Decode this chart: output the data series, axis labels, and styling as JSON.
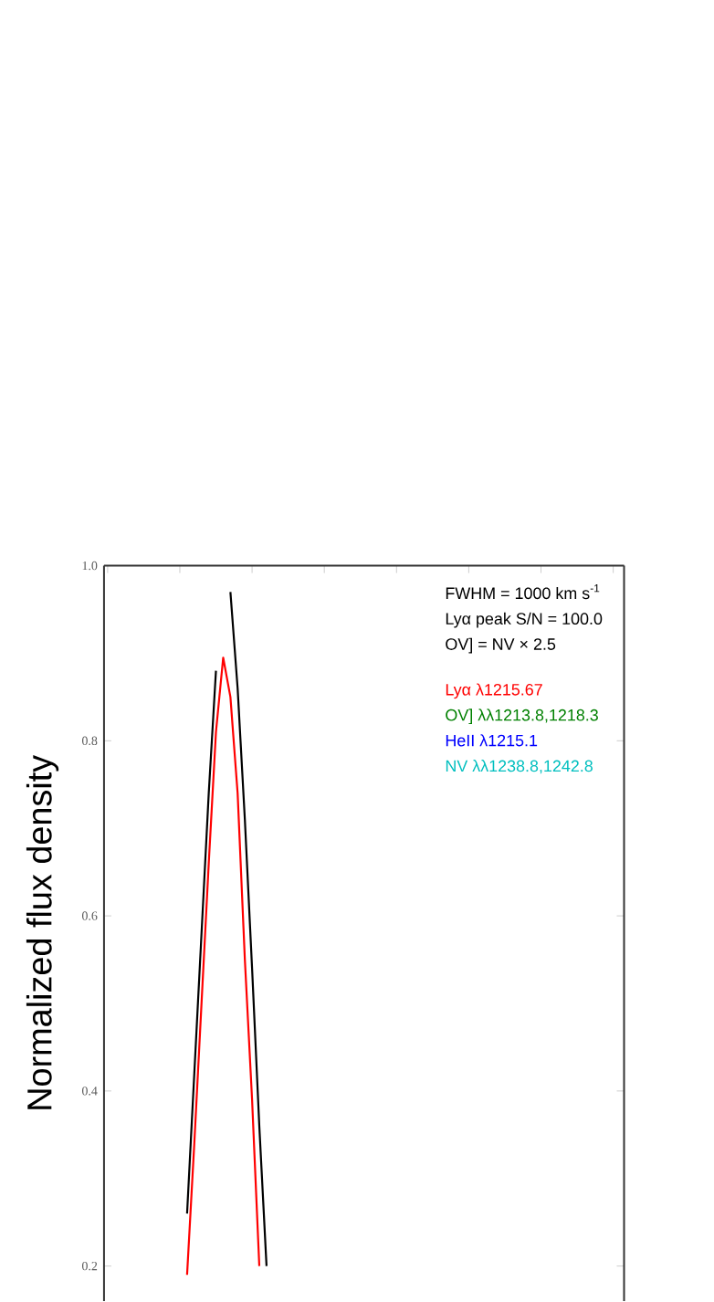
{
  "chart_data": {
    "type": "line",
    "ylabel": "Normalized flux density",
    "annotations": [
      "FWHM = 1000 km s$^{-1}$",
      "Lyα peak S/N = 100.0",
      "OV] = NV × 2.5"
    ],
    "categories": [
      null,
      null,
      null,
      null,
      null,
      null,
      null,
      null,
      null,
      null,
      null,
      null,
      null,
      null,
      null,
      null,
      null,
      null,
      null,
      null,
      null,
      null,
      null,
      null,
      null,
      null,
      null,
      null,
      null,
      null,
      null,
      null,
      null,
      null,
      null,
      null,
      null,
      null,
      null,
      null,
      null,
      null,
      null,
      null,
      null,
      null,
      null,
      null,
      null,
      null,
      null,
      null,
      null,
      null,
      null,
      null,
      null,
      null,
      null,
      null,
      null,
      null,
      null,
      null,
      null,
      null,
      null,
      null,
      null,
      null,
      null,
      null
    ],
    "ylim": [
      0.16,
      1.0
    ],
    "yticks": [
      0.2,
      0.4,
      0.6,
      0.8,
      {
        "value": 1.0,
        "label": "1.0"
      }
    ],
    "tick_labels": "y",
    "marker": "none",
    "line_style": "solid",
    "series": [
      {
        "color": "#000000",
        "values": [
          null,
          null,
          null,
          null,
          null,
          null,
          null,
          null,
          null,
          null,
          null,
          0.26,
          0.42,
          0.58,
          0.74,
          0.88,
          null,
          0.97,
          0.86,
          0.71,
          0.54,
          0.36,
          0.2,
          null,
          null,
          null,
          null,
          null,
          null,
          null,
          null,
          null,
          null,
          null,
          null,
          null,
          null,
          null,
          null,
          null,
          null,
          null,
          null,
          null,
          null,
          null,
          null,
          null,
          null,
          null,
          null,
          null,
          null,
          null,
          null,
          null,
          null,
          null,
          null,
          null,
          null,
          null,
          null,
          null,
          null,
          null,
          null,
          null,
          null,
          null,
          null,
          null
        ]
      },
      {
        "name": "Lyα λ1215.67",
        "color": "#ff0000",
        "values": [
          null,
          null,
          null,
          null,
          null,
          null,
          null,
          null,
          null,
          null,
          null,
          0.19,
          0.34,
          0.5,
          0.66,
          0.81,
          0.895,
          0.85,
          0.74,
          0.55,
          0.39,
          0.2,
          null,
          null,
          null,
          null,
          null,
          null,
          null,
          null,
          null,
          null,
          null,
          null,
          null,
          null,
          null,
          null,
          null,
          null,
          null,
          null,
          null,
          null,
          null,
          null,
          null,
          null,
          null,
          null,
          null,
          null,
          null,
          null,
          null,
          null,
          null,
          null,
          null,
          null,
          null,
          null,
          null,
          null,
          null,
          null,
          null,
          null,
          null,
          null,
          null,
          null
        ]
      },
      {
        "name": "OV] λλ1213.8,1218.3",
        "color": "#008000",
        "values": [
          null,
          null,
          null,
          null,
          null,
          null,
          null,
          null,
          null,
          null,
          null,
          null,
          null,
          null,
          null,
          null,
          null,
          null,
          null,
          null,
          null,
          null,
          null,
          null,
          null,
          null,
          null,
          null,
          null,
          null,
          null,
          null,
          null,
          null,
          null,
          null,
          null,
          null,
          null,
          null,
          null,
          null,
          null,
          null,
          null,
          null,
          null,
          null,
          null,
          null,
          null,
          null,
          null,
          null,
          null,
          null,
          null,
          null,
          null,
          null,
          null,
          null,
          null,
          null,
          null,
          null,
          null,
          null,
          null,
          null,
          null,
          null
        ]
      },
      {
        "name": "HeII λ1215.1",
        "color": "#0000ff",
        "values": [
          null,
          null,
          null,
          null,
          null,
          null,
          null,
          null,
          null,
          null,
          null,
          null,
          null,
          null,
          null,
          null,
          null,
          null,
          null,
          null,
          null,
          null,
          null,
          null,
          null,
          null,
          null,
          null,
          null,
          null,
          null,
          null,
          null,
          null,
          null,
          null,
          null,
          null,
          null,
          null,
          null,
          null,
          null,
          null,
          null,
          null,
          null,
          null,
          null,
          null,
          null,
          null,
          null,
          null,
          null,
          null,
          null,
          null,
          null,
          null,
          null,
          null,
          null,
          null,
          null,
          null,
          null,
          null,
          null,
          null,
          null,
          null
        ]
      },
      {
        "name": "NV λλ1238.8,1242.8",
        "color": "#00bfbf",
        "values": [
          null,
          null,
          null,
          null,
          null,
          null,
          null,
          null,
          null,
          null,
          null,
          null,
          null,
          null,
          null,
          null,
          null,
          null,
          null,
          null,
          null,
          null,
          null,
          null,
          null,
          null,
          null,
          null,
          null,
          null,
          null,
          null,
          null,
          null,
          null,
          null,
          null,
          null,
          null,
          null,
          null,
          null,
          null,
          null,
          null,
          null,
          null,
          null,
          null,
          null,
          null,
          null,
          null,
          null,
          null,
          null,
          null,
          null,
          null,
          null,
          null,
          null,
          null,
          null,
          null,
          null,
          null,
          null,
          null,
          null,
          null,
          null
        ]
      }
    ]
  }
}
